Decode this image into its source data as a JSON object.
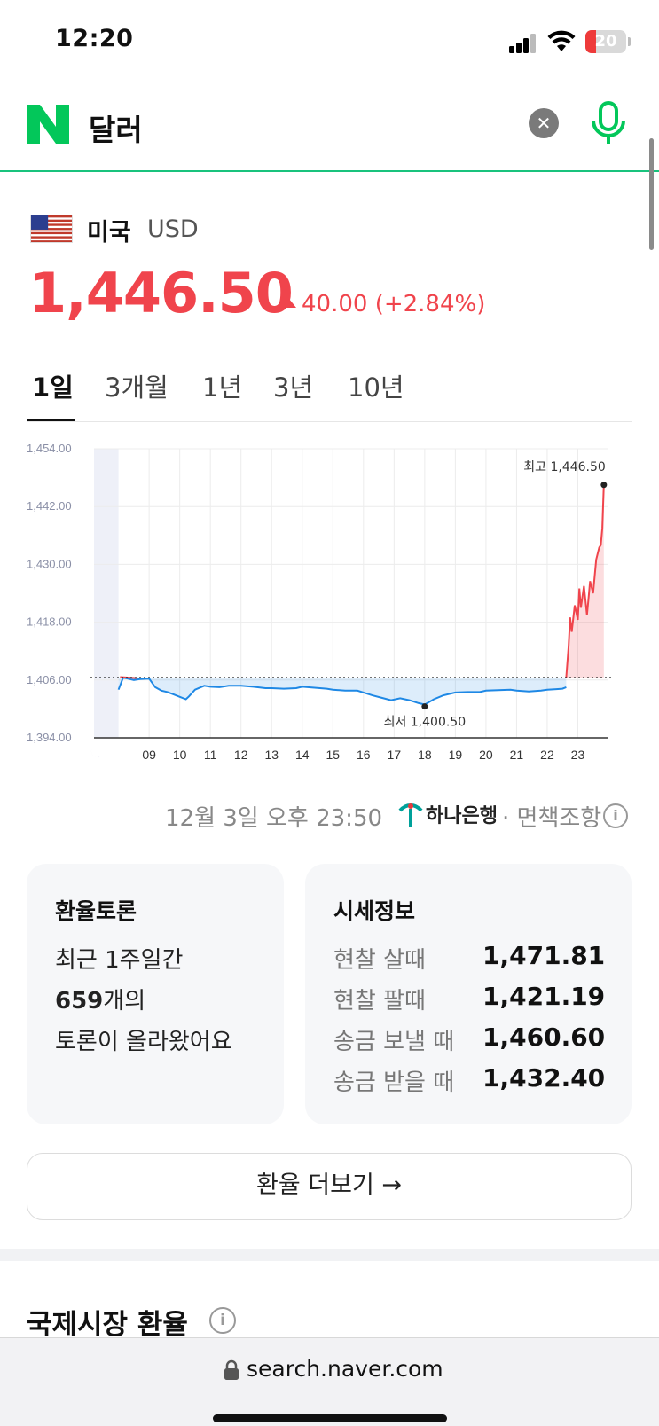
{
  "status_bar": {
    "time": "12:20",
    "battery": "20",
    "battery_color": "#ee3a3a"
  },
  "search": {
    "query": "달러",
    "brand_color": "#03c75a",
    "clear_icon": "close-circle-icon",
    "mic_icon": "microphone-icon"
  },
  "currency": {
    "country": "미국",
    "code": "USD",
    "flag_icon": "us-flag-icon",
    "price": "1,446.50",
    "change": "40.00 (+2.84%)",
    "change_direction": "up",
    "up_color": "#f0444c"
  },
  "tabs": [
    {
      "label": "1일",
      "active": true
    },
    {
      "label": "3개월",
      "active": false
    },
    {
      "label": "1년",
      "active": false
    },
    {
      "label": "3년",
      "active": false
    },
    {
      "label": "10년",
      "active": false
    }
  ],
  "chart_data": {
    "type": "line",
    "ylim": [
      1394,
      1454
    ],
    "y_ticks": [
      "1,454.00",
      "1,442.00",
      "1,430.00",
      "1,418.00",
      "1,406.00",
      "1,394.00"
    ],
    "x_ticks": [
      "09",
      "10",
      "11",
      "12",
      "13",
      "14",
      "15",
      "16",
      "17",
      "18",
      "19",
      "20",
      "21",
      "22",
      "23"
    ],
    "night_icon": "moon-icon",
    "baseline": 1406.5,
    "high_label": "최고 1,446.50",
    "low_label": "최저 1,400.50",
    "high": 1446.5,
    "low": 1400.5,
    "up_color": "#f0444c",
    "down_color": "#1e88e5",
    "grid": true,
    "series": [
      {
        "x": [
          8.0,
          8.15,
          8.3,
          8.5,
          8.7,
          9.0,
          9.2,
          9.4,
          9.6,
          9.8,
          10.0,
          10.2,
          10.3,
          10.5,
          10.8,
          11.0,
          11.3,
          11.6,
          12.0,
          12.4,
          12.8,
          13.0,
          13.4,
          13.8,
          14.0,
          14.4,
          14.8,
          15.0,
          15.4,
          15.8,
          16.0,
          16.3,
          16.6,
          16.9,
          17.2,
          17.5,
          17.8,
          18.0,
          18.3,
          18.6,
          19.0,
          19.4,
          19.8,
          20.0,
          20.4,
          20.8,
          21.0,
          21.4,
          21.8,
          22.0,
          22.3,
          22.5,
          22.62
        ],
        "values": [
          1404,
          1406.5,
          1406.3,
          1406.0,
          1406.2,
          1406.3,
          1404.5,
          1403.8,
          1403.5,
          1403.0,
          1402.5,
          1402.0,
          1402.6,
          1404.0,
          1404.8,
          1404.6,
          1404.5,
          1404.8,
          1404.8,
          1404.6,
          1404.3,
          1404.3,
          1404.2,
          1404.3,
          1404.6,
          1404.4,
          1404.2,
          1404.0,
          1403.8,
          1403.8,
          1403.4,
          1402.8,
          1402.3,
          1401.8,
          1402.2,
          1401.8,
          1401.2,
          1400.9,
          1402.0,
          1402.8,
          1403.4,
          1403.5,
          1403.5,
          1403.8,
          1403.9,
          1404.0,
          1403.8,
          1403.6,
          1403.8,
          1404.0,
          1404.1,
          1404.2,
          1404.5
        ]
      },
      {
        "x": [
          22.62,
          22.7,
          22.75,
          22.8,
          22.9,
          23.0,
          23.05,
          23.1,
          23.2,
          23.3,
          23.35,
          23.4,
          23.5,
          23.6,
          23.7,
          23.75,
          23.8,
          23.85
        ],
        "values": [
          1406.5,
          1413.0,
          1419.0,
          1416.0,
          1421.5,
          1418.5,
          1425.0,
          1421.0,
          1425.5,
          1419.5,
          1423.0,
          1426.5,
          1424.0,
          1431.0,
          1433.5,
          1434.0,
          1437.5,
          1446.5
        ]
      }
    ]
  },
  "as_of": "12월 3일 오후 23:50",
  "source_bank": "하나은행",
  "disclaimer": "· 면책조항",
  "talk_card": {
    "title": "환율토론",
    "line1": "최근 1주일간",
    "count": "659",
    "line2_suffix": "개의",
    "line3": "토론이 올라왔어요"
  },
  "quote_card": {
    "title": "시세정보",
    "rows": [
      {
        "label": "현찰 살때",
        "value": "1,471.81"
      },
      {
        "label": "현찰 팔때",
        "value": "1,421.19"
      },
      {
        "label": "송금 보낼 때",
        "value": "1,460.60"
      },
      {
        "label": "송금 받을 때",
        "value": "1,432.40"
      }
    ]
  },
  "more_button": "환율 더보기 →",
  "next_section_title": "국제시장 환율",
  "browser": {
    "url": "search.naver.com"
  }
}
